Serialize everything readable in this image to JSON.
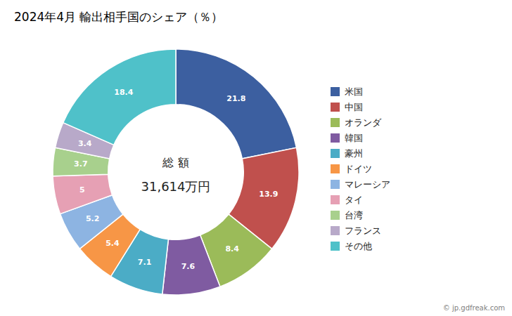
{
  "chart_data": {
    "type": "donut",
    "title": "2024年4月 輸出相手国のシェア（％）",
    "center_text": [
      "総  額",
      "31,614万円"
    ],
    "caption": "© jp.gdfreak.com",
    "categories": [
      "米国",
      "中国",
      "オランダ",
      "韓国",
      "豪州",
      "ドイツ",
      "マレーシア",
      "タイ",
      "台湾",
      "フランス",
      "その他"
    ],
    "values": [
      21.8,
      13.9,
      8.4,
      7.6,
      7.1,
      5.4,
      5.2,
      5.0,
      3.7,
      3.4,
      18.4
    ],
    "colors": [
      "#3C5FA0",
      "#C0504D",
      "#9BBB59",
      "#7F5BA1",
      "#4BACC6",
      "#F79646",
      "#8DB4E2",
      "#E6A0B4",
      "#A8D08D",
      "#B8A9C9",
      "#4FC1C9"
    ],
    "data_labels": true,
    "legend": "right"
  }
}
